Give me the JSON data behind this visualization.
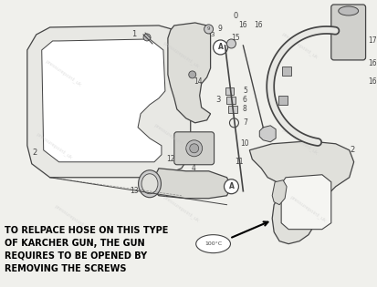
{
  "background_color": "#f0f0ec",
  "watermark_text": "pressurepoint_uk",
  "watermark_color": "#c8c8c8",
  "annotation_text": "TO RELPACE HOSE ON THIS TYPE\nOF KARCHER GUN, THE GUN\nREQUIRES TO BE OPENED BY\nREMOVING THE SCREWS",
  "annotation_fontsize": 7.0,
  "annotation_color": "#000000",
  "line_color": "#444444",
  "lw": 0.9,
  "fig_w": 4.13,
  "fig_h": 3.15,
  "dpi": 100
}
